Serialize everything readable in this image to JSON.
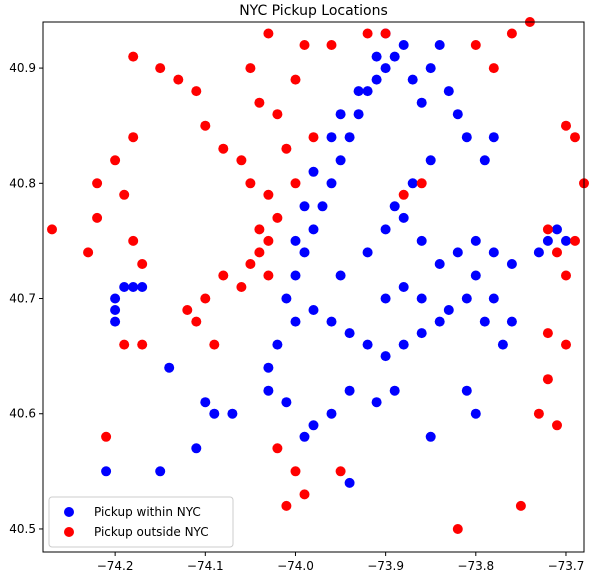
{
  "chart_data": {
    "type": "scatter",
    "title": "NYC Pickup Locations",
    "xlabel": "",
    "ylabel": "",
    "xlim": [
      -74.28,
      -73.68
    ],
    "ylim": [
      40.48,
      40.94
    ],
    "xticks": [
      -74.2,
      -74.1,
      -74.0,
      -73.9,
      -73.8,
      -73.7
    ],
    "xtick_labels": [
      "−74.2",
      "−74.1",
      "−74.0",
      "−73.9",
      "−73.8",
      "−73.7"
    ],
    "yticks": [
      40.5,
      40.6,
      40.7,
      40.8,
      40.9
    ],
    "ytick_labels": [
      "40.5",
      "40.6",
      "40.7",
      "40.8",
      "40.9"
    ],
    "grid": false,
    "legend_position": "lower-left",
    "series": [
      {
        "name": "Pickup within NYC",
        "color": "#0000ff",
        "points": [
          [
            -74.01,
            40.7
          ],
          [
            -74.0,
            40.72
          ],
          [
            -73.99,
            40.74
          ],
          [
            -73.98,
            40.76
          ],
          [
            -73.97,
            40.78
          ],
          [
            -73.96,
            40.8
          ],
          [
            -73.95,
            40.82
          ],
          [
            -73.94,
            40.84
          ],
          [
            -73.93,
            40.86
          ],
          [
            -73.92,
            40.88
          ],
          [
            -73.91,
            40.89
          ],
          [
            -73.9,
            40.9
          ],
          [
            -73.89,
            40.91
          ],
          [
            -73.88,
            40.92
          ],
          [
            -74.0,
            40.75
          ],
          [
            -73.99,
            40.78
          ],
          [
            -73.98,
            40.81
          ],
          [
            -73.96,
            40.84
          ],
          [
            -73.95,
            40.86
          ],
          [
            -73.93,
            40.88
          ],
          [
            -73.91,
            40.91
          ],
          [
            -73.9,
            40.93
          ],
          [
            -74.02,
            40.66
          ],
          [
            -74.0,
            40.68
          ],
          [
            -73.98,
            40.69
          ],
          [
            -73.96,
            40.68
          ],
          [
            -73.94,
            40.67
          ],
          [
            -73.92,
            40.66
          ],
          [
            -73.9,
            40.65
          ],
          [
            -73.88,
            40.66
          ],
          [
            -73.86,
            40.67
          ],
          [
            -73.84,
            40.68
          ],
          [
            -73.95,
            40.72
          ],
          [
            -73.92,
            40.74
          ],
          [
            -73.9,
            40.76
          ],
          [
            -73.88,
            40.77
          ],
          [
            -73.86,
            40.75
          ],
          [
            -73.84,
            40.73
          ],
          [
            -73.82,
            40.74
          ],
          [
            -73.8,
            40.75
          ],
          [
            -73.78,
            40.74
          ],
          [
            -73.76,
            40.73
          ],
          [
            -73.94,
            40.62
          ],
          [
            -73.96,
            40.6
          ],
          [
            -73.98,
            40.59
          ],
          [
            -73.99,
            40.58
          ],
          [
            -74.01,
            40.61
          ],
          [
            -74.03,
            40.62
          ],
          [
            -74.03,
            40.64
          ],
          [
            -73.91,
            40.61
          ],
          [
            -73.89,
            40.62
          ],
          [
            -74.2,
            40.7
          ],
          [
            -74.19,
            40.71
          ],
          [
            -74.18,
            40.71
          ],
          [
            -74.17,
            40.71
          ],
          [
            -74.2,
            40.69
          ],
          [
            -74.2,
            40.68
          ],
          [
            -74.14,
            40.64
          ],
          [
            -74.1,
            40.61
          ],
          [
            -74.09,
            40.6
          ],
          [
            -74.07,
            40.6
          ],
          [
            -74.21,
            40.55
          ],
          [
            -74.15,
            40.55
          ],
          [
            -74.11,
            40.57
          ],
          [
            -74.18,
            40.52
          ],
          [
            -73.73,
            40.74
          ],
          [
            -73.72,
            40.75
          ],
          [
            -73.71,
            40.76
          ],
          [
            -73.7,
            40.75
          ],
          [
            -73.79,
            40.82
          ],
          [
            -73.78,
            40.84
          ],
          [
            -73.8,
            40.6
          ],
          [
            -73.81,
            40.62
          ],
          [
            -73.85,
            40.58
          ],
          [
            -73.94,
            40.54
          ],
          [
            -73.87,
            40.89
          ],
          [
            -73.86,
            40.87
          ],
          [
            -73.85,
            40.9
          ],
          [
            -73.84,
            40.92
          ],
          [
            -73.83,
            40.88
          ],
          [
            -73.82,
            40.86
          ],
          [
            -73.81,
            40.84
          ],
          [
            -73.89,
            40.78
          ],
          [
            -73.87,
            40.8
          ],
          [
            -73.85,
            40.82
          ],
          [
            -73.81,
            40.7
          ],
          [
            -73.79,
            40.68
          ],
          [
            -73.77,
            40.66
          ],
          [
            -73.76,
            40.68
          ],
          [
            -73.78,
            40.7
          ],
          [
            -73.8,
            40.72
          ],
          [
            -73.83,
            40.69
          ],
          [
            -73.86,
            40.7
          ],
          [
            -73.88,
            40.71
          ],
          [
            -73.9,
            40.7
          ]
        ]
      },
      {
        "name": "Pickup outside NYC",
        "color": "#ff0000",
        "points": [
          [
            -74.27,
            40.76
          ],
          [
            -74.22,
            40.77
          ],
          [
            -74.23,
            40.74
          ],
          [
            -74.22,
            40.8
          ],
          [
            -74.2,
            40.82
          ],
          [
            -74.19,
            40.79
          ],
          [
            -74.18,
            40.84
          ],
          [
            -74.18,
            40.75
          ],
          [
            -74.17,
            40.73
          ],
          [
            -74.18,
            40.91
          ],
          [
            -74.15,
            40.9
          ],
          [
            -74.13,
            40.89
          ],
          [
            -74.11,
            40.88
          ],
          [
            -74.1,
            40.85
          ],
          [
            -74.08,
            40.83
          ],
          [
            -74.06,
            40.82
          ],
          [
            -74.05,
            40.8
          ],
          [
            -74.03,
            40.79
          ],
          [
            -74.04,
            40.76
          ],
          [
            -74.04,
            40.74
          ],
          [
            -74.05,
            40.73
          ],
          [
            -74.03,
            40.72
          ],
          [
            -74.03,
            40.75
          ],
          [
            -74.02,
            40.77
          ],
          [
            -74.06,
            40.71
          ],
          [
            -74.08,
            40.72
          ],
          [
            -74.1,
            40.7
          ],
          [
            -74.12,
            40.69
          ],
          [
            -74.11,
            40.68
          ],
          [
            -74.09,
            40.66
          ],
          [
            -74.17,
            40.66
          ],
          [
            -74.19,
            40.66
          ],
          [
            -74.21,
            40.58
          ],
          [
            -74.02,
            40.57
          ],
          [
            -74.0,
            40.55
          ],
          [
            -73.99,
            40.53
          ],
          [
            -74.01,
            40.52
          ],
          [
            -73.95,
            40.55
          ],
          [
            -73.86,
            40.8
          ],
          [
            -73.88,
            40.79
          ],
          [
            -73.96,
            40.92
          ],
          [
            -73.92,
            40.93
          ],
          [
            -73.9,
            40.93
          ],
          [
            -73.8,
            40.92
          ],
          [
            -73.78,
            40.9
          ],
          [
            -73.76,
            40.93
          ],
          [
            -73.74,
            40.94
          ],
          [
            -73.72,
            40.76
          ],
          [
            -73.71,
            40.74
          ],
          [
            -73.69,
            40.75
          ],
          [
            -73.7,
            40.72
          ],
          [
            -73.72,
            40.67
          ],
          [
            -73.7,
            40.66
          ],
          [
            -73.68,
            40.8
          ],
          [
            -73.72,
            40.63
          ],
          [
            -73.71,
            40.59
          ],
          [
            -73.73,
            40.6
          ],
          [
            -73.75,
            40.52
          ],
          [
            -73.82,
            40.5
          ],
          [
            -74.02,
            40.86
          ],
          [
            -74.0,
            40.89
          ],
          [
            -74.04,
            40.87
          ],
          [
            -74.05,
            40.9
          ],
          [
            -74.03,
            40.93
          ],
          [
            -73.99,
            40.92
          ],
          [
            -73.98,
            40.84
          ],
          [
            -74.0,
            40.8
          ],
          [
            -74.01,
            40.83
          ],
          [
            -73.7,
            40.85
          ],
          [
            -73.69,
            40.84
          ]
        ]
      }
    ]
  }
}
